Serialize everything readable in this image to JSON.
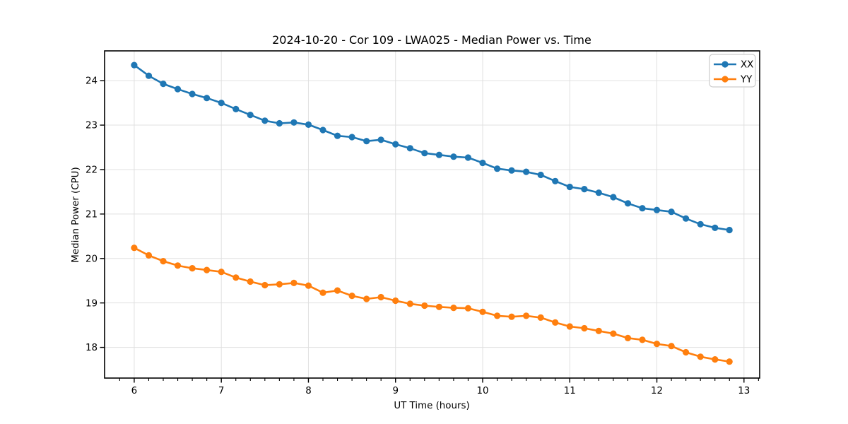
{
  "chart_data": {
    "type": "line",
    "title": "2024-10-20 - Cor 109 - LWA025 - Median Power vs. Time",
    "xlabel": "UT Time (hours)",
    "ylabel": "Median Power (CPU)",
    "xlim": [
      5.66,
      13.18
    ],
    "ylim": [
      17.31,
      24.67
    ],
    "xticks": [
      6,
      7,
      8,
      9,
      10,
      11,
      12,
      13
    ],
    "yticks": [
      18,
      19,
      20,
      21,
      22,
      23,
      24
    ],
    "x_minor_tick_interval": 0.16667,
    "grid": true,
    "legend": {
      "location": "upper right",
      "entries": [
        "XX",
        "YY"
      ]
    },
    "x": [
      6.0,
      6.167,
      6.333,
      6.5,
      6.667,
      6.833,
      7.0,
      7.167,
      7.333,
      7.5,
      7.667,
      7.833,
      8.0,
      8.167,
      8.333,
      8.5,
      8.667,
      8.833,
      9.0,
      9.167,
      9.333,
      9.5,
      9.667,
      9.833,
      10.0,
      10.167,
      10.333,
      10.5,
      10.667,
      10.833,
      11.0,
      11.167,
      11.333,
      11.5,
      11.667,
      11.833,
      12.0,
      12.167,
      12.333,
      12.5,
      12.667,
      12.833
    ],
    "series": [
      {
        "name": "XX",
        "color": "#1f77b4",
        "marker": "circle",
        "values": [
          24.35,
          24.11,
          23.93,
          23.81,
          23.7,
          23.61,
          23.5,
          23.36,
          23.23,
          23.1,
          23.04,
          23.06,
          23.01,
          22.89,
          22.76,
          22.73,
          22.64,
          22.67,
          22.57,
          22.48,
          22.37,
          22.33,
          22.29,
          22.27,
          22.15,
          22.02,
          21.98,
          21.95,
          21.88,
          21.74,
          21.61,
          21.56,
          21.48,
          21.38,
          21.24,
          21.13,
          21.09,
          21.05,
          20.9,
          20.77,
          20.69,
          20.64
        ]
      },
      {
        "name": "YY",
        "color": "#ff7f0e",
        "marker": "circle",
        "values": [
          20.24,
          20.07,
          19.94,
          19.84,
          19.78,
          19.74,
          19.7,
          19.57,
          19.48,
          19.4,
          19.42,
          19.45,
          19.39,
          19.23,
          19.28,
          19.16,
          19.09,
          19.13,
          19.05,
          18.98,
          18.94,
          18.91,
          18.89,
          18.88,
          18.8,
          18.71,
          18.69,
          18.71,
          18.67,
          18.56,
          18.47,
          18.43,
          18.37,
          18.31,
          18.21,
          18.17,
          18.08,
          18.03,
          17.89,
          17.79,
          17.73,
          17.68
        ]
      }
    ],
    "style": {
      "background": "#ffffff",
      "grid_color": "#e0e0e0",
      "spine_color": "#000000",
      "legend_border_color": "#cccccc",
      "text_color": "#000000"
    }
  }
}
